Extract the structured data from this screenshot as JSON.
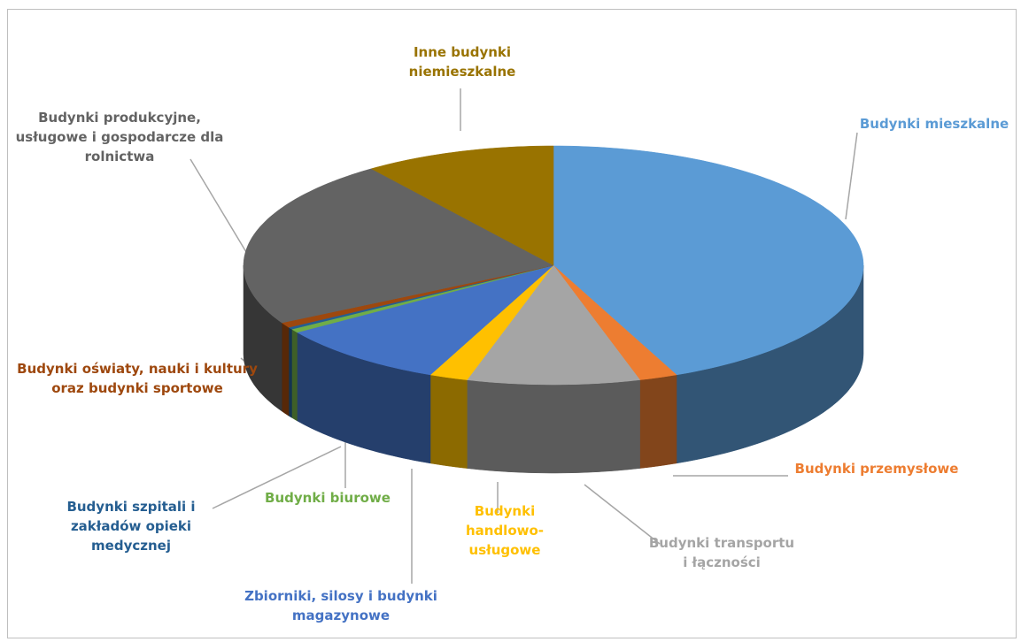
{
  "chart_data": {
    "type": "pie",
    "categories": [
      "Budynki mieszkalne",
      "Budynki przemysłowe",
      "Budynki transportu i łączności",
      "Budynki handlowo-usługowe",
      "Zbiorniki, silosy i budynki magazynowe",
      "Budynki biurowe",
      "Budynki szpitali i zakładów opieki medycznej",
      "Budynki oświaty, nauki i kultury oraz budynki sportowe",
      "Budynki produkcyjne, usługowe i gospodarcze dla rolnictwa",
      "Inne budynki niemieszkalne"
    ],
    "values": [
      43.5,
      2,
      9,
      2,
      9,
      0.5,
      0.3,
      0.7,
      23,
      10
    ],
    "colors": [
      "#5b9bd5",
      "#ed7d31",
      "#a5a5a5",
      "#ffc000",
      "#4472c4",
      "#70ad47",
      "#255e91",
      "#9e480e",
      "#636363",
      "#997300"
    ]
  }
}
